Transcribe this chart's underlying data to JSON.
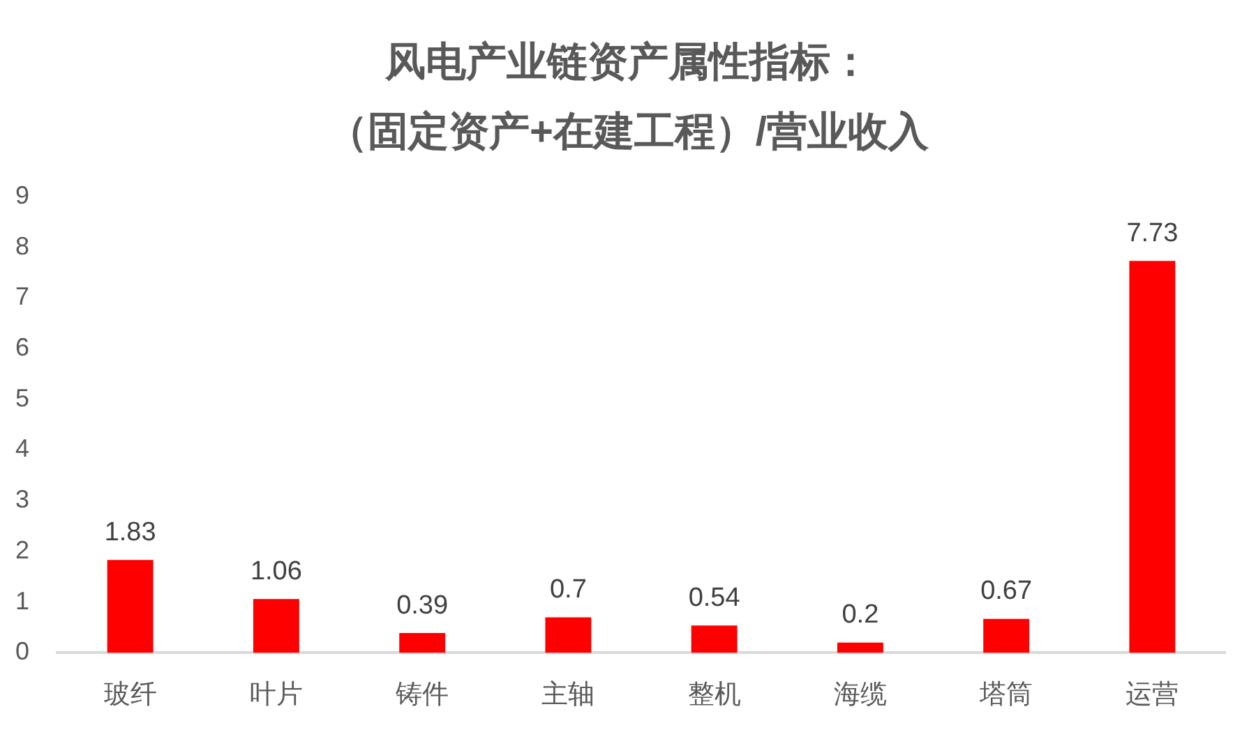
{
  "chart_data": {
    "type": "bar",
    "title": "风电产业链资产属性指标：",
    "subtitle": "（固定资产+在建工程）/营业收入",
    "categories": [
      "玻纤",
      "叶片",
      "铸件",
      "主轴",
      "整机",
      "海缆",
      "塔筒",
      "运营"
    ],
    "values": [
      1.83,
      1.06,
      0.39,
      0.7,
      0.54,
      0.2,
      0.67,
      7.73
    ],
    "color": "#ff0000",
    "ylim": [
      0,
      9
    ],
    "yticks": [
      0,
      1,
      2,
      3,
      4,
      5,
      6,
      7,
      8,
      9
    ],
    "grid": false,
    "data_labels": true
  }
}
